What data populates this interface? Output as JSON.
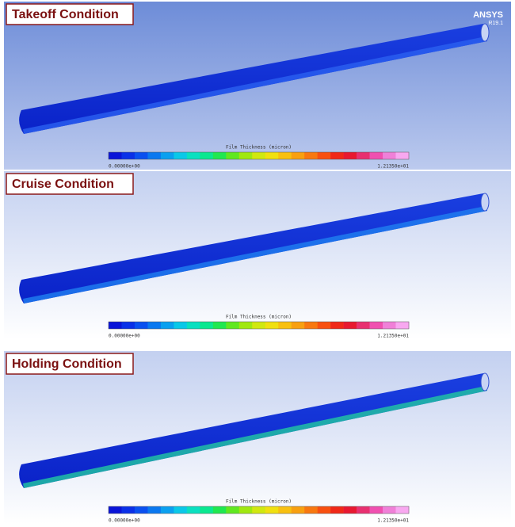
{
  "brand": {
    "name": "ANSYS",
    "version": "R19.1"
  },
  "panels": [
    {
      "title": "Takeoff Condition",
      "legend": {
        "title": "Film Thickness (micron)",
        "min": "0.00000e+00",
        "max": "1.21350e+01"
      }
    },
    {
      "title": "Cruise Condition",
      "legend": {
        "title": "Film Thickness (micron)",
        "min": "0.00000e+00",
        "max": "1.21350e+01"
      }
    },
    {
      "title": "Holding Condition",
      "legend": {
        "title": "Film Thickness (micron)",
        "min": "0.00000e+00",
        "max": "1.21350e+01"
      }
    }
  ]
}
